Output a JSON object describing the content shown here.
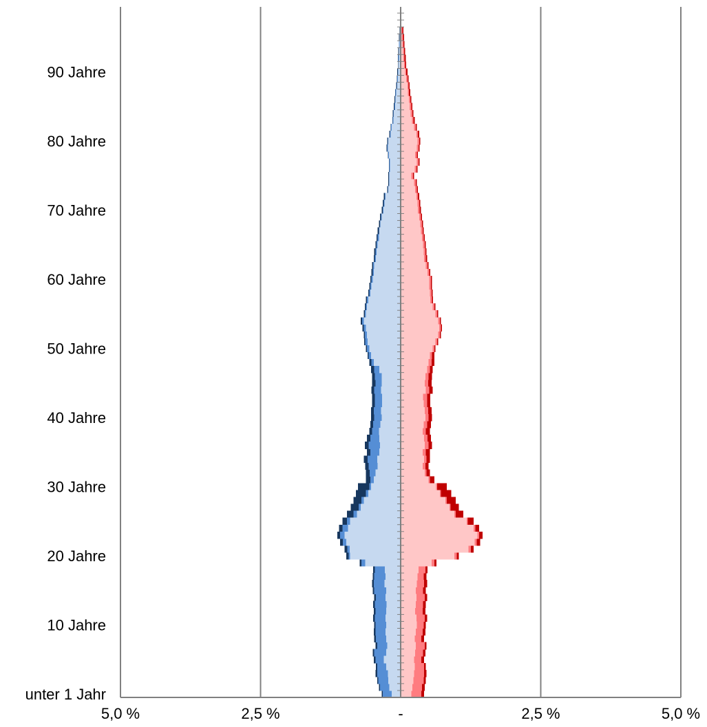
{
  "chart_data": {
    "type": "bar",
    "orientation": "horizontal",
    "y_tick_labels": [
      "unter 1 Jahr",
      "10 Jahre",
      "20 Jahre",
      "30 Jahre",
      "40 Jahre",
      "50 Jahre",
      "60 Jahre",
      "70 Jahre",
      "80 Jahre",
      "90 Jahre"
    ],
    "y_tick_ages": [
      0,
      10,
      20,
      30,
      40,
      50,
      60,
      70,
      80,
      90
    ],
    "x_tick_labels": [
      "5,0 %",
      "2,5 %",
      "-",
      "2,5 %",
      "5,0 %"
    ],
    "x_tick_values": [
      -5.0,
      -2.5,
      0,
      2.5,
      5.0
    ],
    "xlim": [
      -5.0,
      5.0
    ],
    "age_range": [
      0,
      96
    ],
    "grid": "vertical",
    "colors": {
      "male_base": "#c6d9f0",
      "male_mid": "#558ed5",
      "male_outer": "#17375e",
      "female_base": "#ffc7c7",
      "female_mid": "#ff7c80",
      "female_outer": "#c00000",
      "gridline": "#808080"
    },
    "series": [
      {
        "group": "male",
        "layer": "base",
        "values": [
          0.16,
          0.2,
          0.22,
          0.23,
          0.26,
          0.3,
          0.26,
          0.24,
          0.26,
          0.27,
          0.26,
          0.27,
          0.26,
          0.25,
          0.27,
          0.26,
          0.29,
          0.27,
          0.28,
          0.63,
          0.9,
          0.91,
          0.97,
          1.0,
          0.94,
          0.9,
          0.78,
          0.71,
          0.66,
          0.58,
          0.53,
          0.48,
          0.45,
          0.41,
          0.42,
          0.38,
          0.37,
          0.38,
          0.39,
          0.36,
          0.34,
          0.35,
          0.33,
          0.33,
          0.35,
          0.34,
          0.34,
          0.38,
          0.48,
          0.53,
          0.56,
          0.59,
          0.6,
          0.62,
          0.66,
          0.62,
          0.6,
          0.58,
          0.54,
          0.52,
          0.5,
          0.48,
          0.47,
          0.44,
          0.43,
          0.41,
          0.39,
          0.38,
          0.36,
          0.34,
          0.31,
          0.29,
          0.27,
          0.22,
          0.2,
          0.2,
          0.19,
          0.19,
          0.21,
          0.23,
          0.22,
          0.18,
          0.16,
          0.13,
          0.12,
          0.1,
          0.09,
          0.08,
          0.06,
          0.05,
          0.04,
          0.04,
          0.03,
          0.03,
          0.02,
          0.02,
          0.01
        ]
      },
      {
        "group": "male",
        "layer": "mid",
        "values": [
          0.32,
          0.37,
          0.4,
          0.42,
          0.42,
          0.45,
          0.47,
          0.42,
          0.44,
          0.45,
          0.45,
          0.46,
          0.45,
          0.46,
          0.44,
          0.47,
          0.48,
          0.47,
          0.46,
          0.7,
          0.93,
          0.95,
          1.03,
          1.08,
          1.04,
          0.96,
          0.84,
          0.75,
          0.7,
          0.62,
          0.56,
          0.54,
          0.55,
          0.57,
          0.59,
          0.54,
          0.57,
          0.54,
          0.51,
          0.49,
          0.47,
          0.48,
          0.46,
          0.46,
          0.47,
          0.45,
          0.46,
          0.47,
          0.52,
          0.57,
          0.6,
          0.63,
          0.64,
          0.66,
          0.69,
          0.64,
          0.62,
          0.6,
          0.56,
          0.54,
          0.52,
          0.5,
          0.49,
          0.46,
          0.45,
          0.43,
          0.41,
          0.39,
          0.37,
          0.35,
          0.32,
          0.3,
          0.28,
          0.23,
          0.21,
          0.21,
          0.2,
          0.2,
          0.22,
          0.24,
          0.23,
          0.19,
          0.17,
          0.14,
          0.13,
          0.11,
          0.1,
          0.09,
          0.07,
          0.06,
          0.05,
          0.04,
          0.04,
          0.03,
          0.03,
          0.02,
          0.01
        ]
      },
      {
        "group": "male",
        "layer": "outer",
        "values": [
          0.34,
          0.39,
          0.42,
          0.45,
          0.44,
          0.48,
          0.5,
          0.45,
          0.47,
          0.48,
          0.47,
          0.49,
          0.48,
          0.49,
          0.47,
          0.5,
          0.51,
          0.5,
          0.49,
          0.73,
          0.97,
          1.0,
          1.08,
          1.13,
          1.1,
          1.04,
          0.96,
          0.89,
          0.84,
          0.8,
          0.76,
          0.62,
          0.62,
          0.63,
          0.66,
          0.6,
          0.64,
          0.6,
          0.56,
          0.54,
          0.53,
          0.53,
          0.51,
          0.51,
          0.52,
          0.51,
          0.51,
          0.53,
          0.56,
          0.59,
          0.62,
          0.65,
          0.66,
          0.68,
          0.71,
          0.66,
          0.64,
          0.62,
          0.58,
          0.56,
          0.54,
          0.52,
          0.51,
          0.48,
          0.47,
          0.45,
          0.43,
          0.41,
          0.39,
          0.37,
          0.34,
          0.32,
          0.3,
          0.24,
          0.22,
          0.22,
          0.21,
          0.21,
          0.23,
          0.25,
          0.24,
          0.2,
          0.18,
          0.15,
          0.14,
          0.12,
          0.11,
          0.1,
          0.08,
          0.07,
          0.06,
          0.05,
          0.05,
          0.04,
          0.03,
          0.03,
          0.02
        ]
      },
      {
        "group": "female",
        "layer": "base",
        "values": [
          0.19,
          0.21,
          0.23,
          0.24,
          0.25,
          0.24,
          0.26,
          0.27,
          0.25,
          0.27,
          0.29,
          0.28,
          0.26,
          0.27,
          0.28,
          0.27,
          0.29,
          0.3,
          0.32,
          0.55,
          0.96,
          1.21,
          1.32,
          1.37,
          1.3,
          1.18,
          0.96,
          0.87,
          0.8,
          0.7,
          0.63,
          0.5,
          0.43,
          0.39,
          0.42,
          0.39,
          0.43,
          0.42,
          0.39,
          0.41,
          0.44,
          0.43,
          0.41,
          0.4,
          0.45,
          0.43,
          0.44,
          0.47,
          0.5,
          0.52,
          0.57,
          0.62,
          0.67,
          0.69,
          0.67,
          0.62,
          0.57,
          0.53,
          0.52,
          0.51,
          0.51,
          0.48,
          0.45,
          0.42,
          0.41,
          0.4,
          0.38,
          0.36,
          0.35,
          0.33,
          0.31,
          0.3,
          0.28,
          0.26,
          0.24,
          0.19,
          0.25,
          0.29,
          0.26,
          0.29,
          0.3,
          0.28,
          0.24,
          0.2,
          0.18,
          0.16,
          0.15,
          0.13,
          0.12,
          0.1,
          0.08,
          0.06,
          0.05,
          0.04,
          0.03,
          0.02,
          0.01
        ]
      },
      {
        "group": "female",
        "layer": "mid",
        "values": [
          0.37,
          0.38,
          0.41,
          0.42,
          0.42,
          0.37,
          0.4,
          0.43,
          0.37,
          0.39,
          0.41,
          0.43,
          0.39,
          0.4,
          0.43,
          0.4,
          0.42,
          0.41,
          0.44,
          0.6,
          1.0,
          1.25,
          1.36,
          1.4,
          1.33,
          1.2,
          0.98,
          0.89,
          0.82,
          0.72,
          0.65,
          0.52,
          0.46,
          0.44,
          0.46,
          0.45,
          0.5,
          0.48,
          0.45,
          0.47,
          0.5,
          0.49,
          0.47,
          0.47,
          0.51,
          0.49,
          0.5,
          0.52,
          0.55,
          0.56,
          0.6,
          0.65,
          0.7,
          0.72,
          0.7,
          0.65,
          0.6,
          0.56,
          0.55,
          0.54,
          0.54,
          0.51,
          0.48,
          0.45,
          0.44,
          0.43,
          0.41,
          0.39,
          0.38,
          0.36,
          0.34,
          0.33,
          0.31,
          0.29,
          0.27,
          0.22,
          0.28,
          0.32,
          0.29,
          0.32,
          0.33,
          0.31,
          0.27,
          0.23,
          0.21,
          0.19,
          0.17,
          0.15,
          0.14,
          0.12,
          0.1,
          0.08,
          0.07,
          0.06,
          0.05,
          0.04,
          0.03
        ]
      },
      {
        "group": "female",
        "layer": "outer",
        "values": [
          0.42,
          0.43,
          0.45,
          0.46,
          0.45,
          0.42,
          0.44,
          0.46,
          0.42,
          0.44,
          0.45,
          0.47,
          0.44,
          0.45,
          0.47,
          0.45,
          0.47,
          0.46,
          0.48,
          0.64,
          1.04,
          1.3,
          1.42,
          1.46,
          1.4,
          1.3,
          1.12,
          1.04,
          0.98,
          0.9,
          0.82,
          0.6,
          0.52,
          0.5,
          0.52,
          0.52,
          0.56,
          0.54,
          0.52,
          0.54,
          0.56,
          0.55,
          0.53,
          0.53,
          0.57,
          0.55,
          0.56,
          0.57,
          0.6,
          0.6,
          0.62,
          0.67,
          0.72,
          0.74,
          0.72,
          0.67,
          0.62,
          0.58,
          0.57,
          0.56,
          0.56,
          0.53,
          0.5,
          0.47,
          0.46,
          0.45,
          0.43,
          0.41,
          0.4,
          0.38,
          0.36,
          0.35,
          0.33,
          0.31,
          0.29,
          0.24,
          0.3,
          0.34,
          0.31,
          0.34,
          0.35,
          0.33,
          0.29,
          0.25,
          0.23,
          0.21,
          0.19,
          0.17,
          0.16,
          0.14,
          0.12,
          0.1,
          0.09,
          0.08,
          0.07,
          0.06,
          0.05
        ]
      }
    ]
  }
}
